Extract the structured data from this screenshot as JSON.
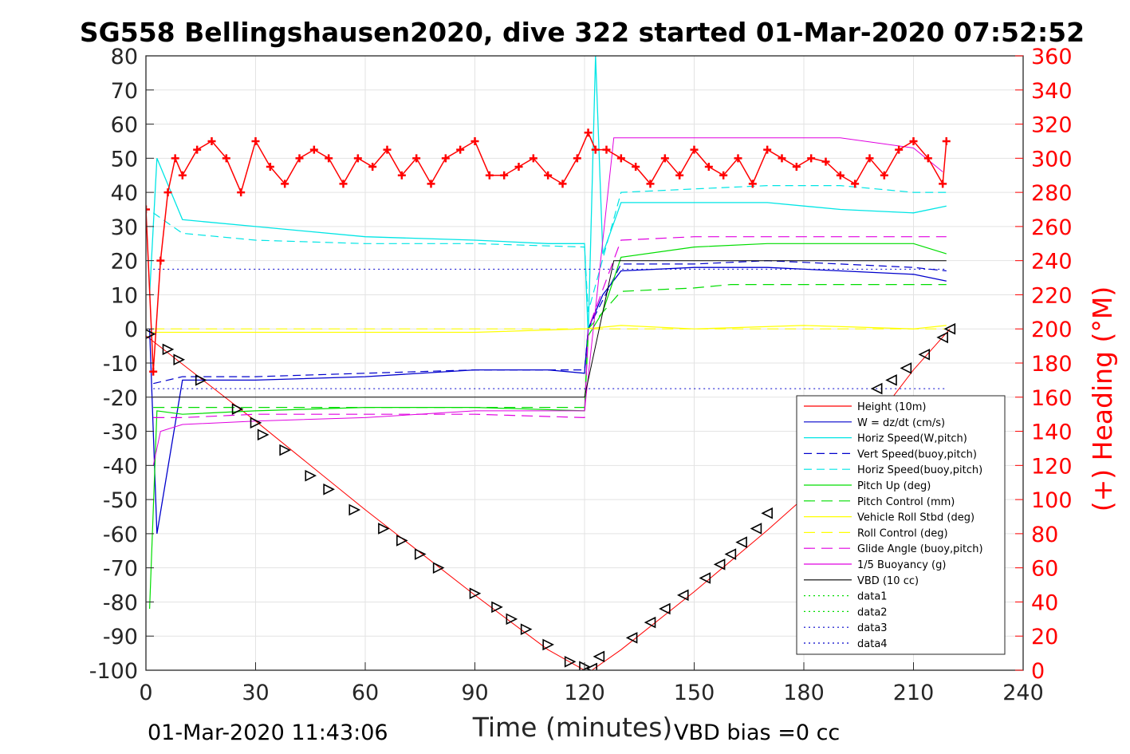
{
  "chart_data": {
    "type": "line",
    "title": "SG558 Bellingshausen2020, dive 322 started 01-Mar-2020 07:52:52",
    "xlabel": "Time (minutes)",
    "ylabel": "",
    "y2label": "(+) Heading (°M)",
    "xlim": [
      0,
      240
    ],
    "ylim": [
      -100,
      80
    ],
    "y2lim": [
      0,
      360
    ],
    "x_ticks": [
      "0",
      "30",
      "60",
      "90",
      "120",
      "150",
      "180",
      "210",
      "240"
    ],
    "y_ticks": [
      "80",
      "70",
      "60",
      "50",
      "40",
      "30",
      "20",
      "10",
      "0",
      "-10",
      "-20",
      "-30",
      "-40",
      "-50",
      "-60",
      "-70",
      "-80",
      "-90",
      "-100"
    ],
    "y2_ticks": [
      "360",
      "340",
      "320",
      "300",
      "280",
      "260",
      "240",
      "220",
      "200",
      "180",
      "160",
      "140",
      "120",
      "100",
      "80",
      "60",
      "40",
      "20",
      "0"
    ],
    "grid": true,
    "legend_position": "bottom-right",
    "footer_left": "01-Mar-2020 11:43:06",
    "footer_right": "VBD bias =0 cc",
    "colors": {
      "height": "#ff0000",
      "w": "#0000cc",
      "horiz": "#00e5e5",
      "pitch": "#00dd00",
      "roll": "#ffff00",
      "glide": "#e000e0",
      "vbd": "#000000",
      "heading": "#ff0000",
      "axis2": "#ff0000"
    },
    "series": [
      {
        "name": "Height (10m)",
        "x": [
          0,
          30,
          60,
          90,
          110,
          120,
          122,
          130,
          150,
          170,
          190,
          210,
          220
        ],
        "y": [
          -2,
          -27,
          -53,
          -78,
          -94,
          -100,
          -100,
          -94,
          -77,
          -59,
          -40,
          -12,
          0
        ]
      },
      {
        "name": "W = dz/dt (cm/s)",
        "x": [
          1,
          3,
          10,
          30,
          60,
          90,
          110,
          120,
          121,
          125,
          130,
          150,
          170,
          190,
          210,
          219
        ],
        "y": [
          0,
          -60,
          -15,
          -15,
          -14,
          -12,
          -12,
          -13,
          0,
          10,
          17,
          18,
          18,
          17,
          16,
          14
        ]
      },
      {
        "name": "Horiz Speed(W,pitch)",
        "x": [
          1,
          3,
          10,
          30,
          60,
          90,
          110,
          120,
          121,
          123,
          125,
          130,
          150,
          170,
          190,
          210,
          219
        ],
        "y": [
          10,
          50,
          32,
          30,
          27,
          26,
          25,
          25,
          -2,
          80,
          22,
          37,
          37,
          37,
          35,
          34,
          36
        ]
      },
      {
        "name": "Vert Speed(buoy,pitch)",
        "x": [
          2,
          10,
          30,
          60,
          90,
          120,
          121,
          130,
          150,
          170,
          190,
          210,
          219
        ],
        "y": [
          -16,
          -14,
          -14,
          -13,
          -12,
          -12,
          0,
          19,
          19,
          20,
          19,
          18,
          17
        ]
      },
      {
        "name": "Horiz Speed(buoy,pitch)",
        "x": [
          2,
          10,
          30,
          60,
          90,
          120,
          121,
          130,
          150,
          170,
          190,
          210,
          219
        ],
        "y": [
          34,
          28,
          26,
          25,
          25,
          24,
          5,
          40,
          41,
          42,
          42,
          40,
          40
        ]
      },
      {
        "name": "Pitch Up (deg)",
        "x": [
          1,
          3,
          10,
          30,
          60,
          90,
          120,
          121,
          125,
          130,
          150,
          170,
          190,
          210,
          219
        ],
        "y": [
          -82,
          -24,
          -25,
          -24,
          -23,
          -23,
          -24,
          -2,
          5,
          21,
          24,
          25,
          25,
          25,
          22
        ]
      },
      {
        "name": "Pitch Control (mm)",
        "x": [
          2,
          120,
          121,
          130,
          150,
          160,
          190,
          210,
          219
        ],
        "y": [
          -23,
          -23,
          0,
          11,
          12,
          13,
          13,
          13,
          13
        ]
      },
      {
        "name": "Vehicle Roll Stbd (deg)",
        "x": [
          2,
          10,
          30,
          60,
          90,
          120,
          130,
          150,
          180,
          210,
          219
        ],
        "y": [
          -1,
          -1,
          -1,
          -1,
          -1,
          0,
          1,
          0,
          1,
          0,
          1
        ]
      },
      {
        "name": "Roll Control (deg)",
        "x": [
          2,
          219
        ],
        "y": [
          0,
          0
        ]
      },
      {
        "name": "Glide Angle (buoy,pitch)",
        "x": [
          2,
          10,
          30,
          60,
          90,
          120,
          121,
          130,
          150,
          170,
          190,
          210,
          219
        ],
        "y": [
          -26,
          -26,
          -25,
          -25,
          -25,
          -26,
          0,
          26,
          27,
          27,
          27,
          27,
          27
        ]
      },
      {
        "name": "1/5 Buoyancy (g)",
        "x": [
          2,
          4,
          10,
          30,
          60,
          90,
          120,
          128,
          150,
          170,
          190,
          210,
          218
        ],
        "y": [
          -40,
          -30,
          -28,
          -27,
          -26,
          -24,
          -24,
          56,
          56,
          56,
          56,
          53,
          46
        ]
      },
      {
        "name": "VBD (10 cc)",
        "x": [
          2,
          120,
          128,
          219
        ],
        "y": [
          -20,
          -20,
          20,
          20
        ]
      },
      {
        "name": "data1",
        "x": [],
        "y": []
      },
      {
        "name": "data2",
        "x": [],
        "y": []
      },
      {
        "name": "data3",
        "x": [
          2,
          219
        ],
        "y": [
          17.5,
          17.5
        ]
      },
      {
        "name": "data4",
        "x": [
          2,
          219
        ],
        "y": [
          -17.5,
          -17.5
        ]
      }
    ],
    "heading": {
      "name": "(+) Heading (°M)",
      "x": [
        0,
        2,
        4,
        6,
        8,
        10,
        14,
        18,
        22,
        26,
        30,
        34,
        38,
        42,
        46,
        50,
        54,
        58,
        62,
        66,
        70,
        74,
        78,
        82,
        86,
        90,
        94,
        98,
        102,
        106,
        110,
        114,
        118,
        121,
        123,
        126,
        130,
        134,
        138,
        142,
        146,
        150,
        154,
        158,
        162,
        166,
        170,
        174,
        178,
        182,
        186,
        190,
        194,
        198,
        202,
        206,
        210,
        214,
        218,
        219
      ],
      "y": [
        270,
        175,
        240,
        280,
        300,
        290,
        305,
        310,
        300,
        280,
        310,
        295,
        285,
        300,
        305,
        300,
        285,
        300,
        295,
        305,
        290,
        300,
        285,
        300,
        305,
        310,
        290,
        290,
        295,
        300,
        290,
        285,
        300,
        315,
        305,
        305,
        300,
        295,
        285,
        300,
        290,
        305,
        295,
        290,
        300,
        285,
        305,
        300,
        295,
        300,
        298,
        290,
        285,
        300,
        290,
        305,
        310,
        300,
        285,
        310
      ]
    },
    "triangles": {
      "x": [
        1,
        6,
        9,
        15,
        25,
        30,
        32,
        38,
        45,
        50,
        57,
        65,
        70,
        75,
        80,
        90,
        96,
        100,
        104,
        110,
        116,
        120,
        122,
        124,
        133,
        138,
        142,
        147,
        153,
        157,
        160,
        163,
        167,
        170,
        200,
        204,
        208,
        213,
        218,
        220
      ],
      "y": [
        -1.5,
        -6,
        -9,
        -15,
        -23.5,
        -27.5,
        -31,
        -35.5,
        -43,
        -47,
        -53,
        -58.5,
        -62,
        -66,
        -70,
        -77.5,
        -81.5,
        -85,
        -88,
        -92.5,
        -97.5,
        -99,
        -99.5,
        -96,
        -90.5,
        -86,
        -82,
        -78,
        -73,
        -69,
        -66,
        -62.5,
        -58.5,
        -54,
        -17.5,
        -15,
        -11.5,
        -7.5,
        -2.5,
        0
      ]
    }
  }
}
